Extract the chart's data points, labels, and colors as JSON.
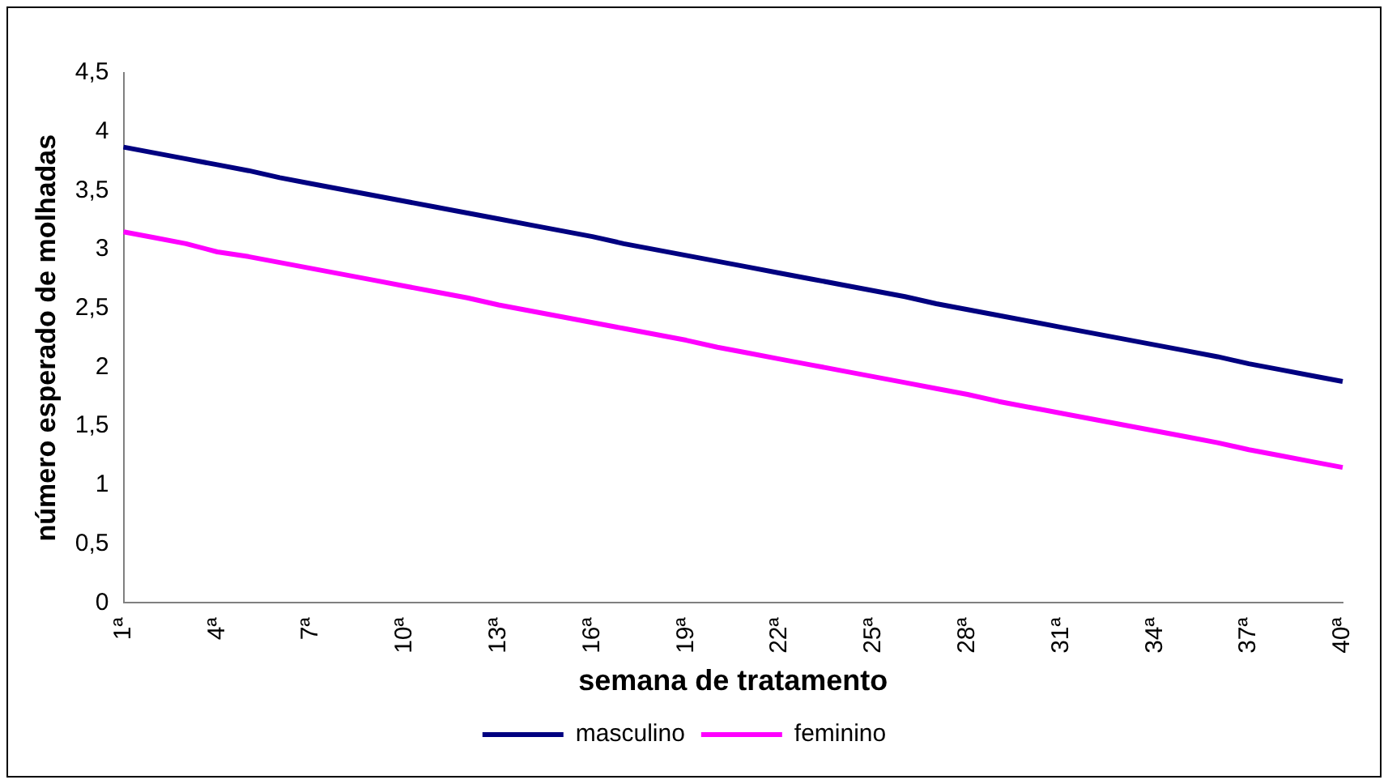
{
  "chart_data": {
    "type": "line",
    "xlabel": "semana de tratamento",
    "ylabel": "número esperado de molhadas",
    "categories": [
      "1ª",
      null,
      null,
      "4ª",
      null,
      null,
      "7ª",
      null,
      null,
      "10ª",
      null,
      null,
      "13ª",
      null,
      null,
      "16ª",
      null,
      null,
      "19ª",
      null,
      null,
      "22ª",
      null,
      null,
      "25ª",
      null,
      null,
      "28ª",
      null,
      null,
      "31ª",
      null,
      null,
      "34ª",
      null,
      null,
      "37ª",
      null,
      null,
      "40ª"
    ],
    "series": [
      {
        "name": "masculino",
        "color": "#000080",
        "values": [
          3.87,
          3.82,
          3.77,
          3.72,
          3.67,
          3.61,
          3.56,
          3.51,
          3.46,
          3.41,
          3.36,
          3.31,
          3.26,
          3.21,
          3.16,
          3.11,
          3.05,
          3.0,
          2.95,
          2.9,
          2.85,
          2.8,
          2.75,
          2.7,
          2.65,
          2.6,
          2.54,
          2.49,
          2.44,
          2.39,
          2.34,
          2.29,
          2.24,
          2.19,
          2.14,
          2.09,
          2.03,
          1.98,
          1.93,
          1.88
        ]
      },
      {
        "name": "feminino",
        "color": "#ff00ff",
        "values": [
          3.15,
          3.1,
          3.05,
          2.98,
          2.94,
          2.89,
          2.84,
          2.79,
          2.74,
          2.69,
          2.64,
          2.59,
          2.53,
          2.48,
          2.43,
          2.38,
          2.33,
          2.28,
          2.23,
          2.17,
          2.12,
          2.07,
          2.02,
          1.97,
          1.92,
          1.87,
          1.82,
          1.77,
          1.71,
          1.66,
          1.61,
          1.56,
          1.51,
          1.46,
          1.41,
          1.36,
          1.3,
          1.25,
          1.2,
          1.15
        ]
      }
    ],
    "ylim": [
      0,
      4.5
    ],
    "yticks": [
      0,
      {
        "value": 0.5,
        "label": "0,5"
      },
      1,
      {
        "value": 1.5,
        "label": "1,5"
      },
      2,
      {
        "value": 2.5,
        "label": "2,5"
      },
      3,
      {
        "value": 3.5,
        "label": "3,5"
      },
      4,
      {
        "value": 4.5,
        "label": "4,5"
      }
    ],
    "grid": false,
    "legend": "bottom",
    "marker": "none",
    "line_style": "solid"
  }
}
